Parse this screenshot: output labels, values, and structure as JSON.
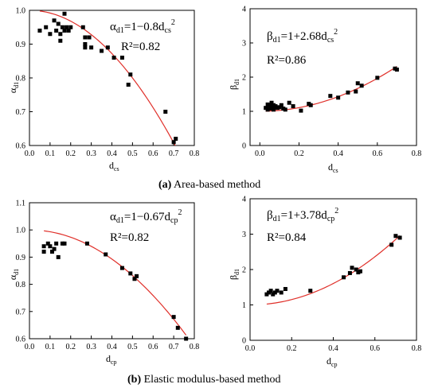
{
  "chart_data": [
    {
      "type": "scatter",
      "eq_main": "α",
      "eq_sub": "d1",
      "eq_rest": "=1−0.8d",
      "eq_sub2": "cs",
      "eq_sup": "2",
      "r2": "R²=0.82",
      "ylabel_main": "α",
      "ylabel_sub": "d1",
      "xlabel_main": "d",
      "xlabel_sub": "cs",
      "xlim": [
        0,
        0.8
      ],
      "ylim": [
        0.6,
        1.0
      ],
      "xticks": [
        "0.0",
        "0.1",
        "0.2",
        "0.3",
        "0.4",
        "0.5",
        "0.6",
        "0.7",
        "0.8"
      ],
      "yticks": [
        "0.6",
        "0.7",
        "0.8",
        "0.9",
        "1.0"
      ],
      "fit": {
        "a": 1,
        "b": -0.8,
        "color": "#e0302a"
      },
      "points": [
        [
          0.05,
          0.94
        ],
        [
          0.08,
          0.95
        ],
        [
          0.1,
          0.93
        ],
        [
          0.12,
          0.97
        ],
        [
          0.13,
          0.94
        ],
        [
          0.14,
          0.96
        ],
        [
          0.15,
          0.91
        ],
        [
          0.15,
          0.93
        ],
        [
          0.16,
          0.95
        ],
        [
          0.17,
          0.99
        ],
        [
          0.17,
          0.94
        ],
        [
          0.18,
          0.95
        ],
        [
          0.19,
          0.94
        ],
        [
          0.2,
          0.95
        ],
        [
          0.26,
          0.95
        ],
        [
          0.27,
          0.92
        ],
        [
          0.27,
          0.9
        ],
        [
          0.27,
          0.89
        ],
        [
          0.29,
          0.92
        ],
        [
          0.3,
          0.89
        ],
        [
          0.35,
          0.88
        ],
        [
          0.38,
          0.89
        ],
        [
          0.41,
          0.86
        ],
        [
          0.45,
          0.86
        ],
        [
          0.48,
          0.78
        ],
        [
          0.49,
          0.81
        ],
        [
          0.66,
          0.7
        ],
        [
          0.7,
          0.61
        ],
        [
          0.71,
          0.62
        ]
      ]
    },
    {
      "type": "scatter",
      "eq_main": "β",
      "eq_sub": "d1",
      "eq_rest": "=1+2.68d",
      "eq_sub2": "cs",
      "eq_sup": "2",
      "r2": "R²=0.86",
      "ylabel_main": "β",
      "ylabel_sub": "d1",
      "xlabel_main": "d",
      "xlabel_sub": "cs",
      "xlim": [
        -0.05,
        0.8
      ],
      "ylim": [
        0,
        4
      ],
      "xticks": [
        "0.0",
        "0.2",
        "0.4",
        "0.6",
        "0.8"
      ],
      "yticks": [
        "0",
        "1",
        "2",
        "3",
        "4"
      ],
      "fit": {
        "a": 1,
        "b": 2.68,
        "color": "#e0302a"
      },
      "points": [
        [
          0.03,
          1.1
        ],
        [
          0.04,
          1.2
        ],
        [
          0.04,
          1.05
        ],
        [
          0.05,
          1.15
        ],
        [
          0.05,
          1.08
        ],
        [
          0.06,
          1.25
        ],
        [
          0.06,
          1.12
        ],
        [
          0.07,
          1.18
        ],
        [
          0.07,
          1.05
        ],
        [
          0.08,
          1.15
        ],
        [
          0.09,
          1.1
        ],
        [
          0.1,
          1.12
        ],
        [
          0.11,
          1.18
        ],
        [
          0.12,
          1.08
        ],
        [
          0.13,
          1.05
        ],
        [
          0.15,
          1.25
        ],
        [
          0.17,
          1.15
        ],
        [
          0.21,
          1.02
        ],
        [
          0.25,
          1.22
        ],
        [
          0.26,
          1.18
        ],
        [
          0.36,
          1.45
        ],
        [
          0.4,
          1.4
        ],
        [
          0.45,
          1.55
        ],
        [
          0.49,
          1.58
        ],
        [
          0.5,
          1.82
        ],
        [
          0.52,
          1.75
        ],
        [
          0.6,
          1.98
        ],
        [
          0.69,
          2.25
        ],
        [
          0.7,
          2.22
        ]
      ]
    },
    {
      "type": "scatter",
      "eq_main": "α",
      "eq_sub": "d1",
      "eq_rest": "=1−0.67d",
      "eq_sub2": "cp",
      "eq_sup": "2",
      "r2": "R²=0.82",
      "ylabel_main": "α",
      "ylabel_sub": "d1",
      "xlabel_main": "d",
      "xlabel_sub": "cp",
      "xlim": [
        0,
        0.8
      ],
      "ylim": [
        0.6,
        1.1
      ],
      "xticks": [
        "0.0",
        "0.1",
        "0.2",
        "0.3",
        "0.4",
        "0.5",
        "0.6",
        "0.7",
        "0.8"
      ],
      "yticks": [
        "0.6",
        "0.7",
        "0.8",
        "0.9",
        "1.0",
        "1.1"
      ],
      "fit": {
        "a": 1,
        "b": -0.67,
        "color": "#e0302a"
      },
      "points": [
        [
          0.07,
          0.92
        ],
        [
          0.07,
          0.94
        ],
        [
          0.09,
          0.95
        ],
        [
          0.1,
          0.94
        ],
        [
          0.11,
          0.92
        ],
        [
          0.12,
          0.93
        ],
        [
          0.13,
          0.95
        ],
        [
          0.14,
          0.9
        ],
        [
          0.16,
          0.95
        ],
        [
          0.17,
          0.95
        ],
        [
          0.28,
          0.95
        ],
        [
          0.37,
          0.91
        ],
        [
          0.45,
          0.86
        ],
        [
          0.49,
          0.84
        ],
        [
          0.51,
          0.82
        ],
        [
          0.52,
          0.83
        ],
        [
          0.7,
          0.68
        ],
        [
          0.72,
          0.64
        ],
        [
          0.76,
          0.6
        ]
      ]
    },
    {
      "type": "scatter",
      "eq_main": "β",
      "eq_sub": "d1",
      "eq_rest": "=1+3.78d",
      "eq_sub2": "cp",
      "eq_sup": "2",
      "r2": "R²=0.84",
      "ylabel_main": "β",
      "ylabel_sub": "d1",
      "xlabel_main": "d",
      "xlabel_sub": "cp",
      "xlim": [
        0,
        0.8
      ],
      "ylim": [
        0,
        4
      ],
      "xticks": [
        "0.0",
        "0.2",
        "0.4",
        "0.6",
        "0.8"
      ],
      "yticks": [
        "0",
        "1",
        "2",
        "3",
        "4"
      ],
      "fit": {
        "a": 1,
        "b": 3.78,
        "color": "#e0302a"
      },
      "points": [
        [
          0.08,
          1.3
        ],
        [
          0.09,
          1.35
        ],
        [
          0.1,
          1.4
        ],
        [
          0.11,
          1.3
        ],
        [
          0.12,
          1.35
        ],
        [
          0.13,
          1.4
        ],
        [
          0.15,
          1.35
        ],
        [
          0.17,
          1.45
        ],
        [
          0.29,
          1.4
        ],
        [
          0.45,
          1.78
        ],
        [
          0.48,
          1.9
        ],
        [
          0.49,
          2.05
        ],
        [
          0.51,
          2.0
        ],
        [
          0.52,
          1.92
        ],
        [
          0.53,
          1.95
        ],
        [
          0.68,
          2.7
        ],
        [
          0.7,
          2.95
        ],
        [
          0.72,
          2.9
        ]
      ]
    }
  ],
  "captions": [
    {
      "label": "(a)",
      "text": " Area-based method"
    },
    {
      "label": "(b)",
      "text": " Elastic modulus-based method"
    }
  ]
}
